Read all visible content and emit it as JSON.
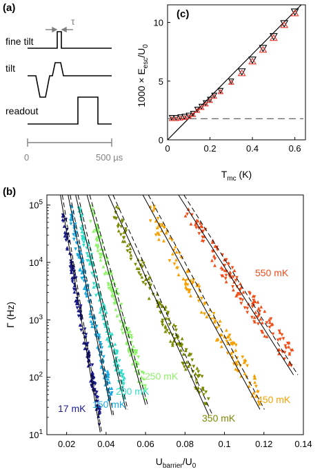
{
  "panels": {
    "a": {
      "label": "(a)",
      "traces": [
        "fine tilt",
        "tilt",
        "readout"
      ],
      "tau": "τ",
      "time_axis": {
        "start": "0",
        "end": "500 µs"
      }
    },
    "b": {
      "label": "(b)"
    },
    "c": {
      "label": "(c)"
    }
  },
  "colors": {
    "17 mK": "#1a1a8c",
    "150 mK": "#1aa8e0",
    "200 mK": "#33dcc8",
    "250 mK": "#8ef26a",
    "350 mK": "#7a8a00",
    "450 mK": "#f5a000",
    "550 mK": "#f04e1a",
    "panel_c_red": "#e8322a"
  },
  "chart_data": [
    {
      "type": "scatter",
      "panel": "(b)",
      "xlabel": "U_barrier/U_0",
      "ylabel": "Γ (Hz)",
      "xlim": [
        0.01,
        0.14
      ],
      "ylim": [
        10,
        150000
      ],
      "yscale": "log",
      "xticks": [
        "0.02",
        "0.04",
        "0.06",
        "0.08",
        "0.1",
        "0.12",
        "0.14"
      ],
      "yticks": [
        "10^1",
        "10^2",
        "10^3",
        "10^4",
        "10^5"
      ],
      "series": [
        {
          "name": "17 mK",
          "x_range": [
            0.018,
            0.037
          ],
          "y_range": [
            20,
            90000
          ]
        },
        {
          "name": "150 mK",
          "x_range": [
            0.022,
            0.043
          ],
          "y_range": [
            40,
            90000
          ]
        },
        {
          "name": "200 mK",
          "x_range": [
            0.026,
            0.05
          ],
          "y_range": [
            50,
            90000
          ]
        },
        {
          "name": "250 mK",
          "x_range": [
            0.032,
            0.06
          ],
          "y_range": [
            60,
            90000
          ]
        },
        {
          "name": "350 mK",
          "x_range": [
            0.044,
            0.092
          ],
          "y_range": [
            40,
            90000
          ]
        },
        {
          "name": "450 mK",
          "x_range": [
            0.062,
            0.118
          ],
          "y_range": [
            50,
            90000
          ]
        },
        {
          "name": "550 mK",
          "x_range": [
            0.08,
            0.135
          ],
          "y_range": [
            200,
            90000
          ]
        }
      ]
    },
    {
      "type": "scatter",
      "panel": "(c)",
      "xlabel": "T_mc (K)",
      "ylabel": "1000 × E_esc/U_0",
      "xlim": [
        0,
        0.65
      ],
      "ylim": [
        0,
        11.5
      ],
      "xticks": [
        "0",
        "0.2",
        "0.4",
        "0.6"
      ],
      "yticks": [
        "0",
        "5",
        "10"
      ],
      "dashed_level": 1.8,
      "points": [
        {
          "x": 0.02,
          "y": 1.8
        },
        {
          "x": 0.04,
          "y": 1.8
        },
        {
          "x": 0.06,
          "y": 1.85
        },
        {
          "x": 0.08,
          "y": 1.9
        },
        {
          "x": 0.1,
          "y": 2.0
        },
        {
          "x": 0.12,
          "y": 2.15
        },
        {
          "x": 0.14,
          "y": 2.5
        },
        {
          "x": 0.16,
          "y": 2.75
        },
        {
          "x": 0.18,
          "y": 3.05
        },
        {
          "x": 0.2,
          "y": 3.35
        },
        {
          "x": 0.22,
          "y": 3.7
        },
        {
          "x": 0.25,
          "y": 4.1
        },
        {
          "x": 0.3,
          "y": 4.9
        },
        {
          "x": 0.35,
          "y": 5.7
        },
        {
          "x": 0.4,
          "y": 6.7
        },
        {
          "x": 0.45,
          "y": 7.7
        },
        {
          "x": 0.5,
          "y": 8.7
        },
        {
          "x": 0.55,
          "y": 9.8
        },
        {
          "x": 0.6,
          "y": 10.8
        }
      ]
    }
  ]
}
